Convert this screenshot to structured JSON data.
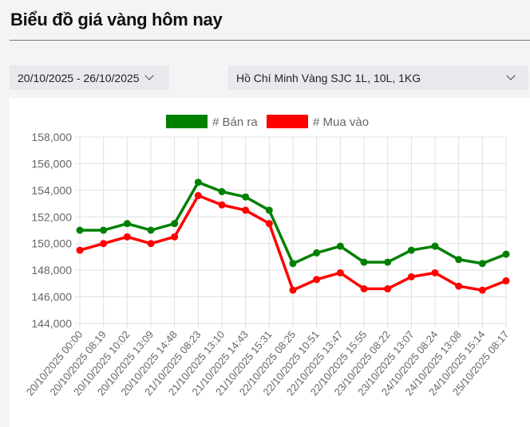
{
  "header": {
    "title": "Biểu đồ giá vàng hôm nay"
  },
  "filters": {
    "date_range": "20/10/2025 - 26/10/2025",
    "location_product": "Hồ Chí Minh Vàng SJC 1L, 10L, 1KG"
  },
  "chart_data": {
    "type": "line",
    "title": "",
    "xlabel": "",
    "ylabel": "",
    "ylim": [
      144000,
      158000
    ],
    "yticks": [
      "144,000",
      "146,000",
      "148,000",
      "150,000",
      "152,000",
      "154,000",
      "156,000",
      "158,000"
    ],
    "grid": true,
    "legend_placement": "top",
    "categories": [
      "20/10/2025 00:00",
      "20/10/2025 08:19",
      "20/10/2025 10:02",
      "20/10/2025 13:09",
      "20/10/2025 14:48",
      "21/10/2025 08:23",
      "21/10/2025 13:10",
      "21/10/2025 14:43",
      "21/10/2025 15:31",
      "22/10/2025 08:25",
      "22/10/2025 10:51",
      "22/10/2025 13:47",
      "22/10/2025 15:55",
      "23/10/2025 08:22",
      "23/10/2025 13:07",
      "24/10/2025 08:24",
      "24/10/2025 13:08",
      "24/10/2025 15:14",
      "25/10/2025 08:17"
    ],
    "series": [
      {
        "name": "# Bán ra",
        "color": "#008000",
        "values": [
          151000,
          151000,
          151500,
          151000,
          151500,
          154600,
          153900,
          153500,
          152500,
          148500,
          149300,
          149800,
          148600,
          148600,
          149500,
          149800,
          148800,
          148500,
          149200
        ]
      },
      {
        "name": "# Mua vào",
        "color": "#ff0000",
        "values": [
          149500,
          150000,
          150500,
          150000,
          150500,
          153600,
          152900,
          152500,
          151500,
          146500,
          147300,
          147800,
          146600,
          146600,
          147500,
          147800,
          146800,
          146500,
          147200
        ]
      }
    ]
  }
}
